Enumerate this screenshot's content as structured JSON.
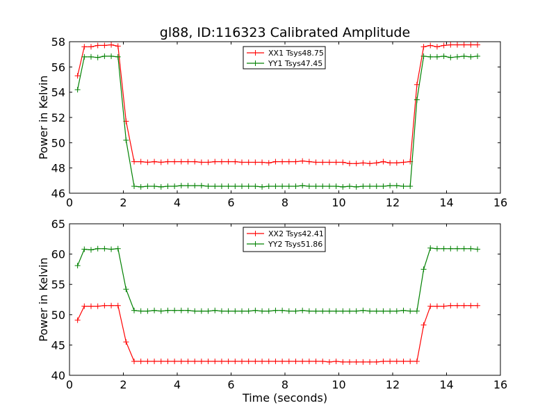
{
  "figure": {
    "title": "gl88, ID:116323 Calibrated Amplitude"
  },
  "chart_data": [
    {
      "type": "line",
      "ylabel": "Power in Kelvin",
      "xlabel": "",
      "xlim": [
        0,
        16
      ],
      "ylim": [
        46,
        58
      ],
      "xticks": [
        "0",
        "2",
        "4",
        "6",
        "8",
        "10",
        "12",
        "14",
        "16"
      ],
      "yticks": [
        "46",
        "48",
        "50",
        "52",
        "54",
        "56",
        "58"
      ],
      "legend_position": "top-center",
      "x": [
        0.3,
        0.55,
        0.8,
        1.05,
        1.3,
        1.55,
        1.8,
        2.1,
        2.4,
        2.65,
        2.9,
        3.15,
        3.4,
        3.65,
        3.9,
        4.15,
        4.4,
        4.65,
        4.9,
        5.15,
        5.4,
        5.65,
        5.9,
        6.15,
        6.4,
        6.65,
        6.9,
        7.15,
        7.4,
        7.65,
        7.9,
        8.15,
        8.4,
        8.65,
        8.9,
        9.15,
        9.4,
        9.65,
        9.9,
        10.15,
        10.4,
        10.65,
        10.9,
        11.15,
        11.4,
        11.65,
        11.9,
        12.15,
        12.4,
        12.65,
        12.9,
        13.15,
        13.4,
        13.65,
        13.9,
        14.15,
        14.4,
        14.65,
        14.9,
        15.15
      ],
      "series": [
        {
          "name": "XX1 Tsys48.75",
          "color": "#ff0000",
          "values": [
            55.3,
            57.6,
            57.6,
            57.7,
            57.7,
            57.75,
            57.65,
            51.7,
            48.5,
            48.5,
            48.45,
            48.5,
            48.45,
            48.5,
            48.5,
            48.5,
            48.5,
            48.5,
            48.45,
            48.45,
            48.5,
            48.5,
            48.5,
            48.5,
            48.45,
            48.45,
            48.45,
            48.45,
            48.4,
            48.5,
            48.5,
            48.5,
            48.5,
            48.55,
            48.5,
            48.45,
            48.45,
            48.45,
            48.45,
            48.45,
            48.35,
            48.35,
            48.4,
            48.35,
            48.4,
            48.5,
            48.4,
            48.4,
            48.45,
            48.5,
            54.6,
            57.6,
            57.7,
            57.6,
            57.7,
            57.75,
            57.75,
            57.75,
            57.75,
            57.75
          ]
        },
        {
          "name": "YY1 Tsys47.45",
          "color": "#008000",
          "values": [
            54.2,
            56.8,
            56.8,
            56.75,
            56.85,
            56.85,
            56.8,
            50.2,
            46.55,
            46.5,
            46.55,
            46.55,
            46.5,
            46.55,
            46.55,
            46.6,
            46.6,
            46.6,
            46.6,
            46.55,
            46.55,
            46.55,
            46.55,
            46.55,
            46.55,
            46.55,
            46.55,
            46.5,
            46.55,
            46.55,
            46.55,
            46.55,
            46.55,
            46.6,
            46.55,
            46.55,
            46.55,
            46.55,
            46.55,
            46.5,
            46.55,
            46.5,
            46.55,
            46.55,
            46.55,
            46.55,
            46.6,
            46.6,
            46.55,
            46.55,
            53.4,
            56.85,
            56.8,
            56.8,
            56.85,
            56.75,
            56.8,
            56.85,
            56.8,
            56.85
          ]
        }
      ]
    },
    {
      "type": "line",
      "ylabel": "Power in Kelvin",
      "xlabel": "Time (seconds)",
      "xlim": [
        0,
        16
      ],
      "ylim": [
        40,
        65
      ],
      "xticks": [
        "0",
        "2",
        "4",
        "6",
        "8",
        "10",
        "12",
        "14",
        "16"
      ],
      "yticks": [
        "40",
        "45",
        "50",
        "55",
        "60",
        "65"
      ],
      "legend_position": "top-center",
      "x": [
        0.3,
        0.55,
        0.8,
        1.05,
        1.3,
        1.55,
        1.8,
        2.1,
        2.4,
        2.65,
        2.9,
        3.15,
        3.4,
        3.65,
        3.9,
        4.15,
        4.4,
        4.65,
        4.9,
        5.15,
        5.4,
        5.65,
        5.9,
        6.15,
        6.4,
        6.65,
        6.9,
        7.15,
        7.4,
        7.65,
        7.9,
        8.15,
        8.4,
        8.65,
        8.9,
        9.15,
        9.4,
        9.65,
        9.9,
        10.15,
        10.4,
        10.65,
        10.9,
        11.15,
        11.4,
        11.65,
        11.9,
        12.15,
        12.4,
        12.65,
        12.9,
        13.15,
        13.4,
        13.65,
        13.9,
        14.15,
        14.4,
        14.65,
        14.9,
        15.15
      ],
      "series": [
        {
          "name": "XX2 Tsys42.41",
          "color": "#ff0000",
          "values": [
            49.1,
            51.4,
            51.4,
            51.4,
            51.5,
            51.5,
            51.5,
            45.5,
            42.3,
            42.3,
            42.3,
            42.3,
            42.3,
            42.3,
            42.3,
            42.3,
            42.3,
            42.3,
            42.3,
            42.3,
            42.3,
            42.3,
            42.3,
            42.3,
            42.3,
            42.3,
            42.3,
            42.3,
            42.3,
            42.3,
            42.3,
            42.3,
            42.3,
            42.3,
            42.3,
            42.3,
            42.3,
            42.2,
            42.3,
            42.2,
            42.2,
            42.2,
            42.2,
            42.2,
            42.2,
            42.3,
            42.3,
            42.3,
            42.3,
            42.3,
            42.3,
            48.3,
            51.4,
            51.4,
            51.4,
            51.5,
            51.5,
            51.5,
            51.5,
            51.5
          ]
        },
        {
          "name": "YY2 Tsys51.86",
          "color": "#008000",
          "values": [
            58.1,
            60.8,
            60.7,
            60.9,
            60.9,
            60.8,
            60.9,
            54.2,
            50.7,
            50.6,
            50.6,
            50.7,
            50.6,
            50.7,
            50.7,
            50.7,
            50.7,
            50.6,
            50.6,
            50.6,
            50.7,
            50.6,
            50.6,
            50.6,
            50.6,
            50.6,
            50.7,
            50.6,
            50.6,
            50.7,
            50.7,
            50.6,
            50.6,
            50.7,
            50.6,
            50.6,
            50.6,
            50.6,
            50.6,
            50.6,
            50.6,
            50.6,
            50.7,
            50.6,
            50.6,
            50.6,
            50.6,
            50.6,
            50.7,
            50.6,
            50.6,
            57.5,
            61.0,
            60.9,
            60.9,
            60.9,
            60.9,
            60.9,
            60.9,
            60.8
          ]
        }
      ]
    }
  ]
}
